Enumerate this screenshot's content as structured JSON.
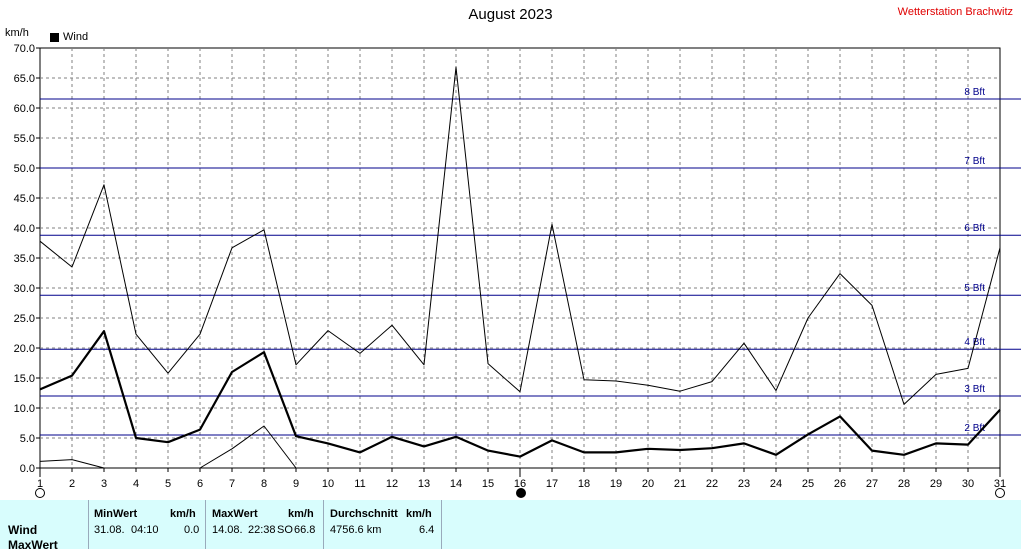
{
  "header": {
    "title": "August 2023",
    "station": "Wetterstation Brachwitz",
    "unit": "km/h"
  },
  "legend": {
    "label": "Wind"
  },
  "chart_data": {
    "type": "line",
    "title": "August 2023",
    "ylabel": "km/h",
    "ylim": [
      0,
      70
    ],
    "xlim": [
      1,
      31
    ],
    "x_ticks": [
      1,
      2,
      3,
      4,
      5,
      6,
      7,
      8,
      9,
      10,
      11,
      12,
      13,
      14,
      15,
      16,
      17,
      18,
      19,
      20,
      21,
      22,
      23,
      24,
      25,
      26,
      27,
      28,
      29,
      30,
      31
    ],
    "y_ticks": [
      "0.0",
      "5.0",
      "10.0",
      "15.0",
      "20.0",
      "25.0",
      "30.0",
      "35.0",
      "40.0",
      "45.0",
      "50.0",
      "55.0",
      "60.0",
      "65.0",
      "70.0"
    ],
    "grid": true,
    "series": [
      {
        "name": "Wind",
        "x": [
          1,
          2,
          3,
          4,
          5,
          6,
          7,
          8,
          9,
          10,
          11,
          12,
          13,
          14,
          15,
          16,
          17,
          18,
          19,
          20,
          21,
          22,
          23,
          24,
          25,
          26,
          27,
          28,
          29,
          30,
          31
        ],
        "values": [
          13.1,
          15.4,
          22.8,
          5.0,
          4.3,
          6.4,
          16.0,
          19.3,
          5.3,
          4.1,
          2.6,
          5.2,
          3.6,
          5.2,
          2.9,
          1.9,
          4.6,
          2.6,
          2.6,
          3.2,
          3.0,
          3.3,
          4.1,
          2.2,
          5.6,
          8.6,
          2.9,
          2.2,
          4.1,
          3.9,
          9.7
        ],
        "color": "#000000",
        "width": 2.2
      },
      {
        "x": [
          1,
          2,
          3,
          4,
          5,
          6,
          7,
          8,
          9,
          10,
          11,
          12,
          13,
          14,
          15,
          16,
          17,
          18,
          19,
          20,
          21,
          22,
          23,
          24,
          25,
          26,
          27,
          28,
          29,
          30,
          31
        ],
        "values": [
          37.8,
          33.5,
          47.2,
          22.3,
          15.8,
          22.3,
          36.7,
          39.7,
          17.2,
          22.9,
          19.1,
          23.8,
          17.2,
          66.8,
          17.4,
          12.7,
          40.6,
          14.7,
          14.5,
          13.8,
          12.8,
          14.4,
          20.8,
          12.9,
          25.0,
          32.4,
          27.1,
          10.6,
          15.6,
          16.6,
          36.7
        ],
        "color": "#000000",
        "width": 1
      },
      {
        "x": [
          1,
          2,
          3
        ],
        "values": [
          1.1,
          1.4,
          0.0
        ],
        "color": "#000000",
        "width": 1
      },
      {
        "x": [
          6,
          7,
          8,
          9
        ],
        "values": [
          0.0,
          3.2,
          7.0,
          0.0
        ],
        "color": "#000000",
        "width": 1
      }
    ],
    "beaufort_lines": [
      {
        "label": "2 Bft",
        "value": 5.5
      },
      {
        "label": "3 Bft",
        "value": 12.0
      },
      {
        "label": "4 Bft",
        "value": 19.8
      },
      {
        "label": "5 Bft",
        "value": 28.8
      },
      {
        "label": "6 Bft",
        "value": 38.8
      },
      {
        "label": "7 Bft",
        "value": 50.0
      },
      {
        "label": "8 Bft",
        "value": 61.5
      }
    ],
    "moon_phases": [
      {
        "day": 1,
        "phase": "full"
      },
      {
        "day": 16,
        "phase": "new"
      },
      {
        "day": 31,
        "phase": "full"
      }
    ]
  },
  "stats": {
    "row_labels": [
      "Wind",
      "MaxWert"
    ],
    "min": {
      "head": "MinWert",
      "unit": "km/h",
      "date": "31.08.",
      "time": "04:10",
      "value": "0.0"
    },
    "max": {
      "head": "MaxWert",
      "unit": "km/h",
      "date": "14.08.",
      "time": "22:38",
      "dir": "SO",
      "value": "66.8"
    },
    "avg": {
      "head": "Durchschnitt",
      "unit": "km/h",
      "distance": "4756.6 km",
      "value": "6.4"
    }
  },
  "colors": {
    "beaufort": "#00008b",
    "grid": "#808080",
    "station": "#e00000",
    "panel": "#d8fdfd"
  }
}
